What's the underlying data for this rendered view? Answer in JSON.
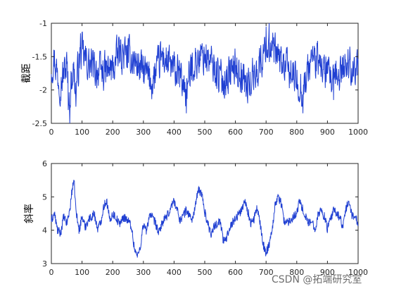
{
  "chart_data": [
    {
      "type": "line",
      "title": "",
      "xlabel": "",
      "ylabel": "截距",
      "xlim": [
        0,
        1000
      ],
      "ylim": [
        -2.5,
        -1
      ],
      "xticks": [
        0,
        100,
        200,
        300,
        400,
        500,
        600,
        700,
        800,
        900,
        1000
      ],
      "yticks": [
        -1,
        -1.5,
        -2,
        -2.5
      ],
      "ytick_labels": [
        "-1",
        "-1.5",
        "-2",
        "-2.5"
      ],
      "series": [
        {
          "color": "#1f3fd2",
          "points": 1000,
          "summary": {
            "mean": -1.68,
            "typical_range": [
              -2.0,
              -1.4
            ],
            "min": -2.5,
            "max": -1.0
          },
          "keypoints": [
            [
              0,
              -1.62
            ],
            [
              10,
              -1.35
            ],
            [
              20,
              -1.85
            ],
            [
              30,
              -2.1
            ],
            [
              50,
              -1.55
            ],
            [
              55,
              -2.3
            ],
            [
              60,
              -2.5
            ],
            [
              70,
              -1.65
            ],
            [
              80,
              -2.25
            ],
            [
              95,
              -1.15
            ],
            [
              120,
              -1.55
            ],
            [
              160,
              -1.8
            ],
            [
              200,
              -1.7
            ],
            [
              220,
              -1.2
            ],
            [
              260,
              -1.35
            ],
            [
              300,
              -1.75
            ],
            [
              330,
              -2.1
            ],
            [
              360,
              -1.3
            ],
            [
              420,
              -1.95
            ],
            [
              440,
              -2.35
            ],
            [
              460,
              -1.55
            ],
            [
              500,
              -1.25
            ],
            [
              560,
              -2.05
            ],
            [
              600,
              -1.6
            ],
            [
              640,
              -2.2
            ],
            [
              680,
              -1.55
            ],
            [
              700,
              -1.05
            ],
            [
              710,
              -1.0
            ],
            [
              740,
              -1.4
            ],
            [
              780,
              -1.8
            ],
            [
              820,
              -2.35
            ],
            [
              850,
              -1.3
            ],
            [
              880,
              -1.6
            ],
            [
              920,
              -2.15
            ],
            [
              960,
              -1.5
            ],
            [
              1000,
              -1.7
            ]
          ]
        }
      ],
      "grid": false,
      "legend": "none"
    },
    {
      "type": "line",
      "title": "",
      "xlabel": "",
      "ylabel": "斜率",
      "xlim": [
        0,
        1000
      ],
      "ylim": [
        3,
        6
      ],
      "xticks": [
        0,
        100,
        200,
        300,
        400,
        500,
        600,
        700,
        800,
        900,
        1000
      ],
      "yticks": [
        3,
        4,
        5,
        6
      ],
      "ytick_labels": [
        "3",
        "4",
        "5",
        "6"
      ],
      "series": [
        {
          "color": "#1f3fd2",
          "points": 1000,
          "keypoints": [
            [
              0,
              4.3
            ],
            [
              10,
              4.5
            ],
            [
              20,
              4.0
            ],
            [
              30,
              3.9
            ],
            [
              40,
              4.4
            ],
            [
              50,
              4.2
            ],
            [
              60,
              4.6
            ],
            [
              65,
              5.0
            ],
            [
              70,
              5.4
            ],
            [
              75,
              5.35
            ],
            [
              80,
              4.6
            ],
            [
              90,
              4.0
            ],
            [
              100,
              4.4
            ],
            [
              110,
              4.1
            ],
            [
              120,
              4.3
            ],
            [
              140,
              4.5
            ],
            [
              150,
              4.05
            ],
            [
              160,
              4.2
            ],
            [
              170,
              4.7
            ],
            [
              180,
              4.9
            ],
            [
              190,
              4.3
            ],
            [
              200,
              4.5
            ],
            [
              210,
              4.4
            ],
            [
              220,
              4.2
            ],
            [
              240,
              4.4
            ],
            [
              260,
              4.15
            ],
            [
              270,
              3.5
            ],
            [
              280,
              3.2
            ],
            [
              290,
              3.5
            ],
            [
              300,
              4.2
            ],
            [
              310,
              3.95
            ],
            [
              320,
              4.5
            ],
            [
              340,
              4.2
            ],
            [
              350,
              3.9
            ],
            [
              360,
              4.2
            ],
            [
              380,
              4.45
            ],
            [
              390,
              4.7
            ],
            [
              400,
              4.9
            ],
            [
              410,
              4.6
            ],
            [
              420,
              4.3
            ],
            [
              440,
              4.6
            ],
            [
              460,
              4.3
            ],
            [
              470,
              4.8
            ],
            [
              480,
              5.2
            ],
            [
              490,
              5.1
            ],
            [
              500,
              4.55
            ],
            [
              510,
              4.2
            ],
            [
              520,
              3.9
            ],
            [
              530,
              4.1
            ],
            [
              550,
              4.3
            ],
            [
              560,
              3.7
            ],
            [
              570,
              3.7
            ],
            [
              580,
              4.1
            ],
            [
              600,
              4.35
            ],
            [
              620,
              4.6
            ],
            [
              630,
              4.9
            ],
            [
              640,
              4.6
            ],
            [
              650,
              4.2
            ],
            [
              660,
              4.3
            ],
            [
              670,
              4.7
            ],
            [
              680,
              4.2
            ],
            [
              690,
              3.6
            ],
            [
              700,
              3.3
            ],
            [
              710,
              3.6
            ],
            [
              720,
              4.05
            ],
            [
              730,
              4.8
            ],
            [
              740,
              5.0
            ],
            [
              750,
              4.8
            ],
            [
              760,
              4.2
            ],
            [
              780,
              4.3
            ],
            [
              800,
              4.55
            ],
            [
              810,
              4.9
            ],
            [
              820,
              4.6
            ],
            [
              840,
              4.2
            ],
            [
              850,
              4.25
            ],
            [
              860,
              4.05
            ],
            [
              870,
              4.5
            ],
            [
              880,
              4.6
            ],
            [
              890,
              4.4
            ],
            [
              900,
              4.05
            ],
            [
              910,
              4.3
            ],
            [
              920,
              4.6
            ],
            [
              940,
              4.4
            ],
            [
              950,
              4.1
            ],
            [
              960,
              4.6
            ],
            [
              970,
              4.9
            ],
            [
              980,
              4.4
            ],
            [
              990,
              4.5
            ],
            [
              1000,
              4.1
            ]
          ]
        }
      ],
      "grid": false,
      "legend": "none"
    }
  ],
  "watermark": "CSDN @拓端研究室"
}
